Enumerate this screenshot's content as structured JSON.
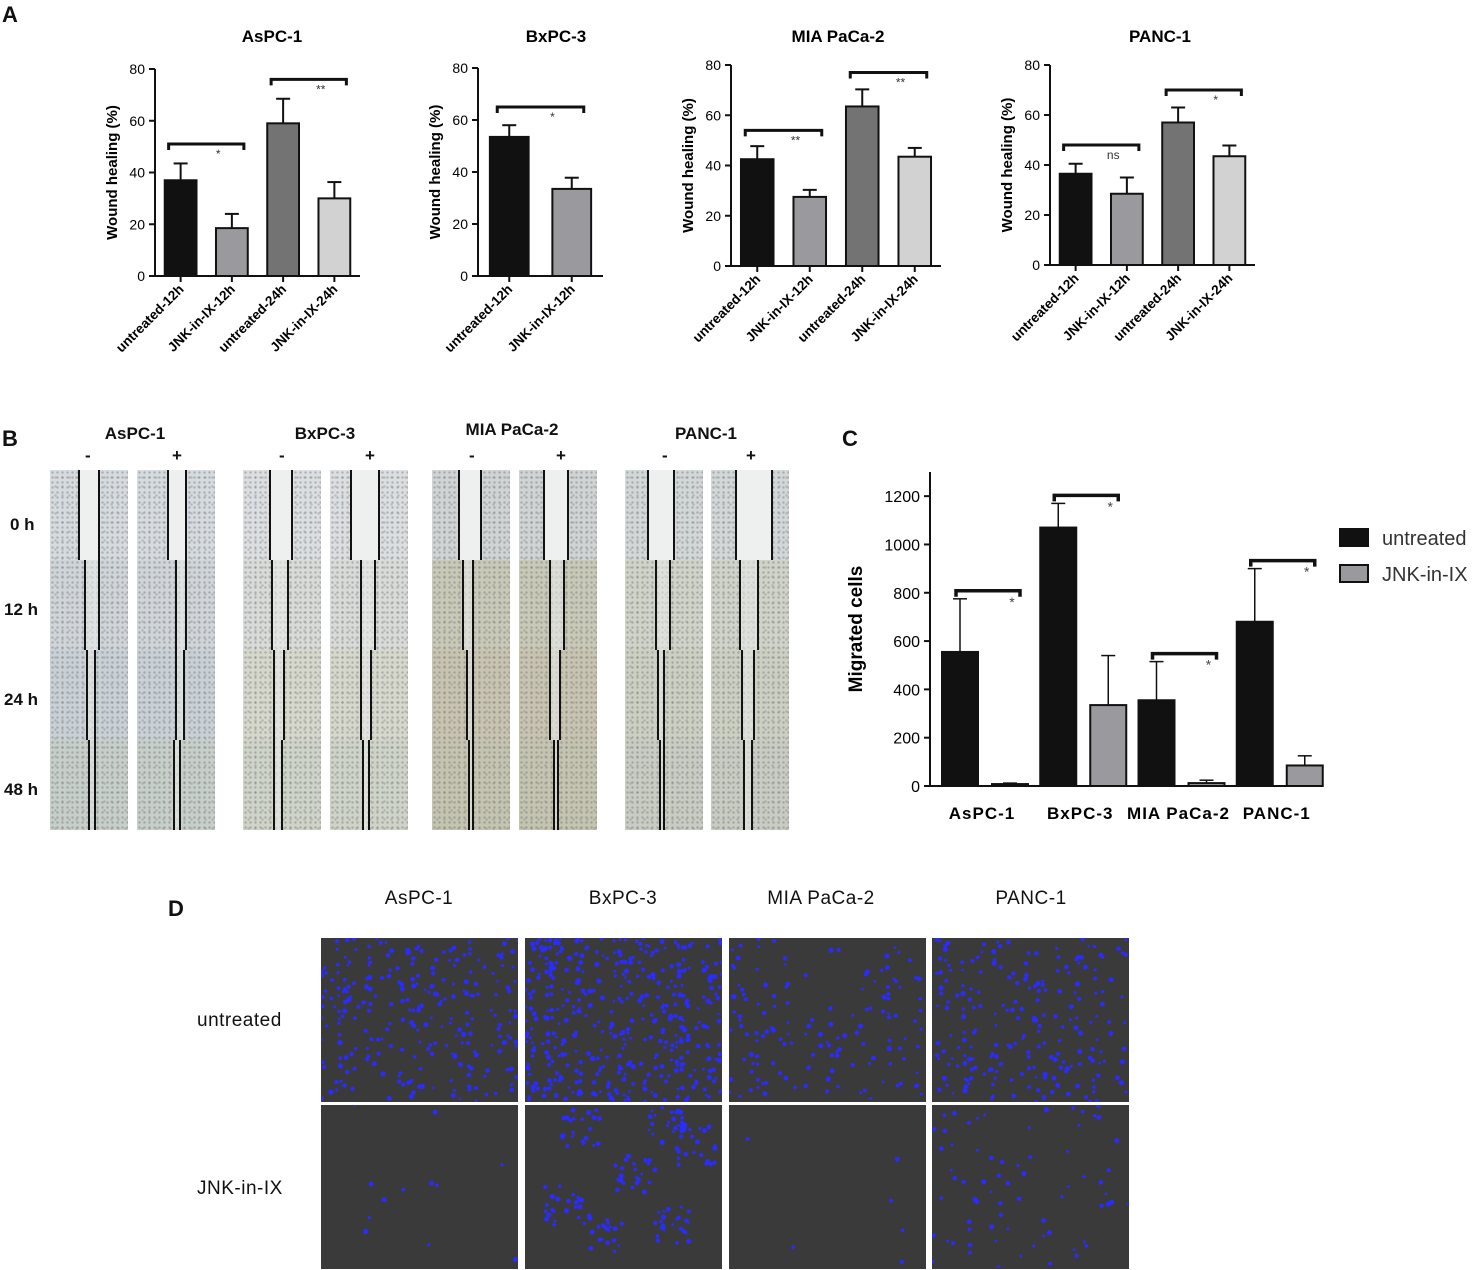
{
  "panels": {
    "a": {
      "letter": "A",
      "charts": [
        {
          "title": "AsPC-1",
          "ylabel": "Wound healing (%)",
          "yticks": [
            "0",
            "20",
            "40",
            "60",
            "80"
          ],
          "ylim": [
            0,
            80
          ],
          "categories": [
            "untreated-12h",
            "JNK-in-IX-12h",
            "untreated-24h",
            "JNK-in-IX-24h"
          ],
          "values": [
            37,
            18.5,
            59,
            30
          ],
          "errors": [
            6.5,
            5.5,
            9.5,
            6.3
          ],
          "colors": [
            "#111111",
            "#9a9a9e",
            "#737373",
            "#d2d2d2"
          ],
          "sig": [
            {
              "from": 0,
              "to": 1,
              "label": "*",
              "y": 51
            },
            {
              "from": 2,
              "to": 3,
              "label": "**",
              "y": 76
            }
          ]
        },
        {
          "title": "BxPC-3",
          "ylabel": "Wound healing (%)",
          "yticks": [
            "0",
            "20",
            "40",
            "60",
            "80"
          ],
          "ylim": [
            0,
            80
          ],
          "categories": [
            "untreated-12h",
            "JNK-in-IX-12h"
          ],
          "values": [
            53.5,
            33.5
          ],
          "errors": [
            4.5,
            4.3
          ],
          "colors": [
            "#111111",
            "#9a9a9e"
          ],
          "sig": [
            {
              "from": 0,
              "to": 1,
              "label": "*",
              "y": 65
            }
          ]
        },
        {
          "title": "MIA PaCa-2",
          "ylabel": "Wound healing (%)",
          "yticks": [
            "0",
            "20",
            "40",
            "60",
            "80"
          ],
          "ylim": [
            0,
            80
          ],
          "categories": [
            "untreated-12h",
            "JNK-in-IX-12h",
            "untreated-24h",
            "JNK-in-IX-24h"
          ],
          "values": [
            42.5,
            27.5,
            63.5,
            43.5
          ],
          "errors": [
            5.2,
            2.8,
            6.8,
            3.5
          ],
          "colors": [
            "#111111",
            "#9a9a9e",
            "#737373",
            "#d2d2d2"
          ],
          "sig": [
            {
              "from": 0,
              "to": 1,
              "label": "**",
              "y": 54
            },
            {
              "from": 2,
              "to": 3,
              "label": "**",
              "y": 77
            }
          ]
        },
        {
          "title": "PANC-1",
          "ylabel": "Wound healing (%)",
          "yticks": [
            "0",
            "20",
            "40",
            "60",
            "80"
          ],
          "ylim": [
            0,
            80
          ],
          "categories": [
            "untreated-12h",
            "JNK-in-IX-12h",
            "untreated-24h",
            "JNK-in-IX-24h"
          ],
          "values": [
            36.5,
            28.5,
            57,
            43.5
          ],
          "errors": [
            4,
            6.5,
            6,
            4.3
          ],
          "colors": [
            "#111111",
            "#9a9a9e",
            "#737373",
            "#d2d2d2"
          ],
          "sig": [
            {
              "from": 0,
              "to": 1,
              "label": "ns",
              "y": 48
            },
            {
              "from": 2,
              "to": 3,
              "label": "*",
              "y": 70
            }
          ]
        }
      ]
    },
    "b": {
      "letter": "B",
      "cell_lines": [
        "AsPC-1",
        "BxPC-3",
        "MIA PaCa-2",
        "PANC-1"
      ],
      "treatments": [
        "-",
        "+"
      ],
      "timepoints": [
        "0 h",
        "12 h",
        "24 h",
        "48 h"
      ]
    },
    "c": {
      "letter": "C",
      "ylabel": "Migrated cells",
      "yticks": [
        "0",
        "200",
        "400",
        "600",
        "800",
        "1000",
        "1200"
      ],
      "ylim": [
        0,
        1300
      ],
      "categories": [
        "AsPC-1",
        "BxPC-3",
        "MIA PaCa-2",
        "PANC-1"
      ],
      "series": [
        {
          "name": "untreated",
          "color": "#111111",
          "values": [
            555,
            1070,
            355,
            680
          ],
          "errors": [
            220,
            100,
            160,
            220
          ]
        },
        {
          "name": "JNK-in-IX",
          "color": "#9a9a9e",
          "values": [
            8,
            335,
            12,
            85
          ],
          "errors": [
            4,
            205,
            12,
            40
          ]
        }
      ],
      "sig_label": "*"
    },
    "d": {
      "letter": "D",
      "cell_lines": [
        "AsPC-1",
        "BxPC-3",
        "MIA PaCa-2",
        "PANC-1"
      ],
      "rows": [
        "untreated",
        "JNK-in-IX"
      ]
    }
  },
  "colors": {
    "nuclei": "#2a2cff",
    "fluor_bg": "#3a3a3a"
  }
}
